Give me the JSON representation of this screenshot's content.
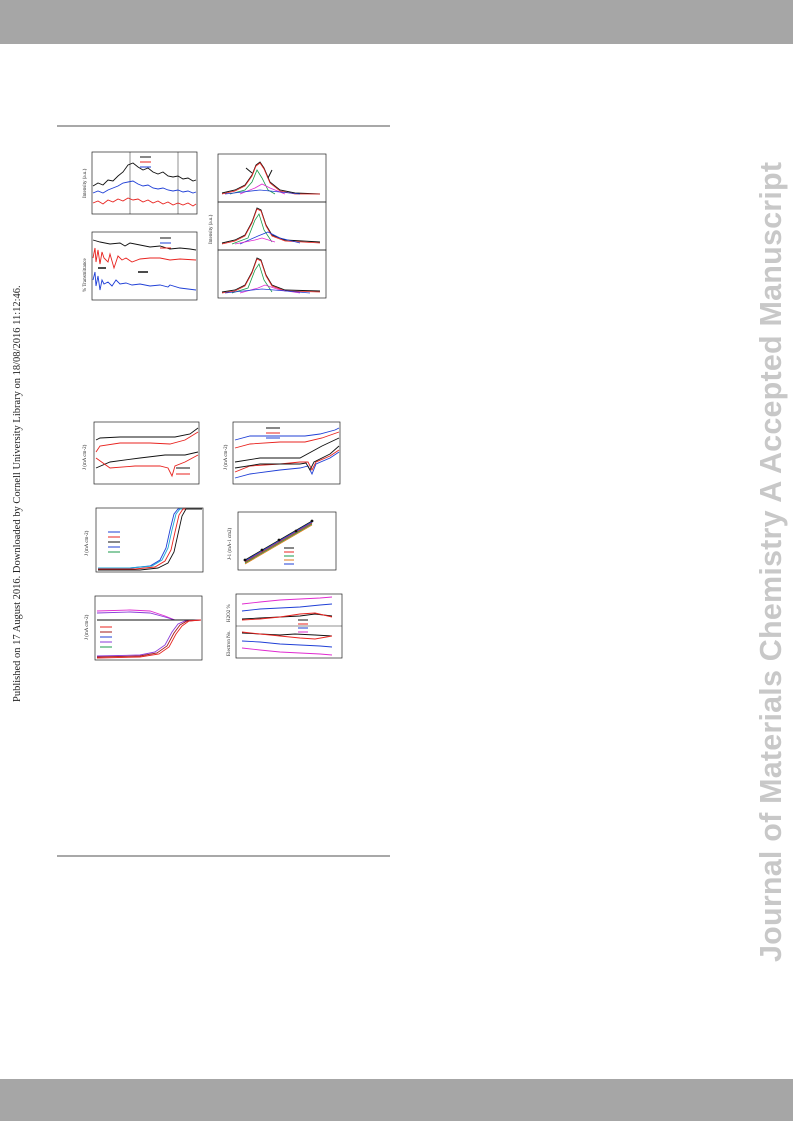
{
  "side_text": {
    "published": "Published on 17 August 2016. Downloaded by Cornell University Library on 18/08/2016 11:12:46.",
    "journal_watermark": "Journal of Materials Chemistry A Accepted Manuscript"
  },
  "figure_labels": {
    "xrd_ylabel": "Intensity (a.u.)",
    "ftir_ylabel": "% Transmittance",
    "xps_ylabel": "Intensity (a.u.)",
    "cv1_ylabel": "J (mA cm-2)",
    "cv2_ylabel": "J (mA cm-2)",
    "lsv_ylabel": "J (mA cm-2)",
    "kl_ylabel": "J-1 (mA-1 cm2)",
    "rrde_ylabel": "J (mA cm-2)",
    "h2o2_ylabel": "H2O2 %",
    "n_ylabel": "Electron No."
  },
  "colors": {
    "black": "#111111",
    "red": "#e8231f",
    "blue": "#1f3fd6",
    "green": "#1a9a4a",
    "magenta": "#e02ad0",
    "orange": "#e07a1a",
    "cyan": "#1aa8d8",
    "purple": "#8a3ad8",
    "darkred": "#a01a1a"
  }
}
